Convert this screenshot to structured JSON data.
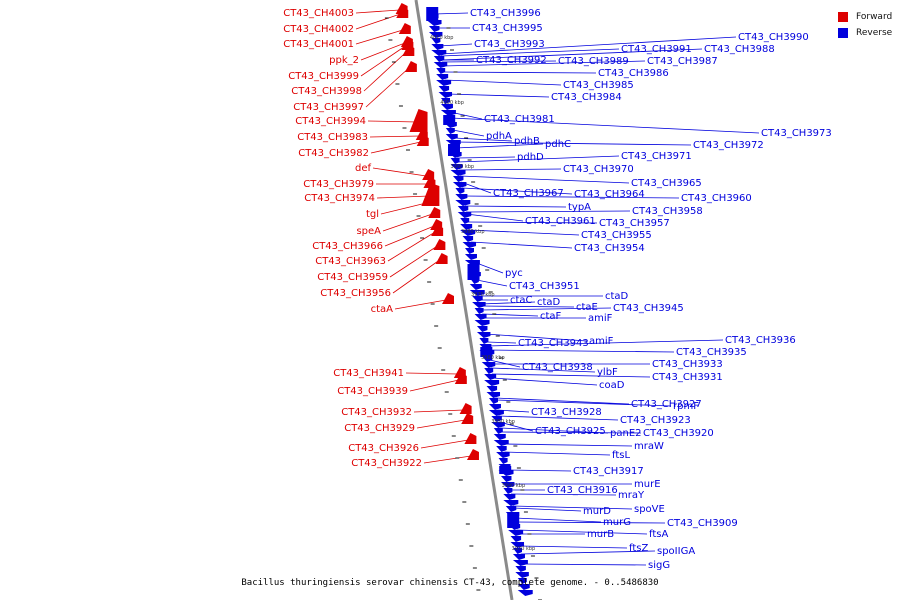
{
  "title": "Bacillus thuringiensis serovar chinensis CT-43, complete genome. - 0..5486830",
  "legend": [
    {
      "label": "Forward",
      "color": "#dd0000"
    },
    {
      "label": "Reverse",
      "color": "#0000dd"
    }
  ],
  "colors": {
    "forward": "#dd0000",
    "reverse": "#0000dd",
    "backbone": "#888888"
  },
  "ticks": [
    "4010 kbp",
    "4000 kbp",
    "3990 kbp",
    "3980 kbp",
    "3970 kbp",
    "3960 kbp",
    "3950 kbp",
    "3940 kbp",
    "3930 kbp"
  ],
  "forward_genes": [
    "CT43_CH4003",
    "CT43_CH4002",
    "CT43_CH4001",
    "ppk_2",
    "CT43_CH3999",
    "CT43_CH3998",
    "CT43_CH3997",
    "CT43_CH3994",
    "CT43_CH3983",
    "CT43_CH3982",
    "def",
    "CT43_CH3979",
    "CT43_CH3974",
    "tgl",
    "speA",
    "CT43_CH3966",
    "CT43_CH3963",
    "CT43_CH3959",
    "CT43_CH3956",
    "ctaA",
    "CT43_CH3941",
    "CT43_CH3939",
    "CT43_CH3932",
    "CT43_CH3929",
    "CT43_CH3926",
    "CT43_CH3922"
  ],
  "reverse_genes": [
    "CT43_CH3996",
    "CT43_CH3995",
    "CT43_CH3993",
    "CT43_CH3990",
    "CT43_CH3991",
    "CT43_CH3988",
    "CT43_CH3992",
    "CT43_CH3989",
    "CT43_CH3987",
    "CT43_CH3986",
    "CT43_CH3985",
    "CT43_CH3984",
    "CT43_CH3981",
    "CT43_CH3973",
    "pdhA",
    "pdhB",
    "CT43_CH3972",
    "pdhC",
    "pdhD",
    "CT43_CH3971",
    "CT43_CH3970",
    "CT43_CH3965",
    "CT43_CH3967",
    "CT43_CH3964",
    "CT43_CH3960",
    "typA",
    "CT43_CH3958",
    "CT43_CH3961",
    "CT43_CH3957",
    "CT43_CH3955",
    "CT43_CH3954",
    "pyc",
    "CT43_CH3951",
    "ctaD",
    "ctaC",
    "ctaD",
    "ctaE",
    "CT43_CH3945",
    "ctaF",
    "amiF",
    "amiF",
    "CT43_CH3943",
    "CT43_CH3936",
    "CT43_CH3935",
    "CT43_CH3938",
    "CT43_CH3933",
    "ylbF",
    "CT43_CH3931",
    "coaD",
    "CT43_CH3927",
    "rpmF",
    "CT43_CH3928",
    "CT43_CH3923",
    "CT43_CH3925",
    "panE2",
    "CT43_CH3920",
    "mraW",
    "ftsL",
    "CT43_CH3917",
    "murE",
    "CT43_CH3916",
    "mraY",
    "spoVE",
    "murD",
    "murG",
    "CT43_CH3909",
    "ftsA",
    "murB",
    "ftsZ",
    "spoIIGA",
    "sigG"
  ]
}
